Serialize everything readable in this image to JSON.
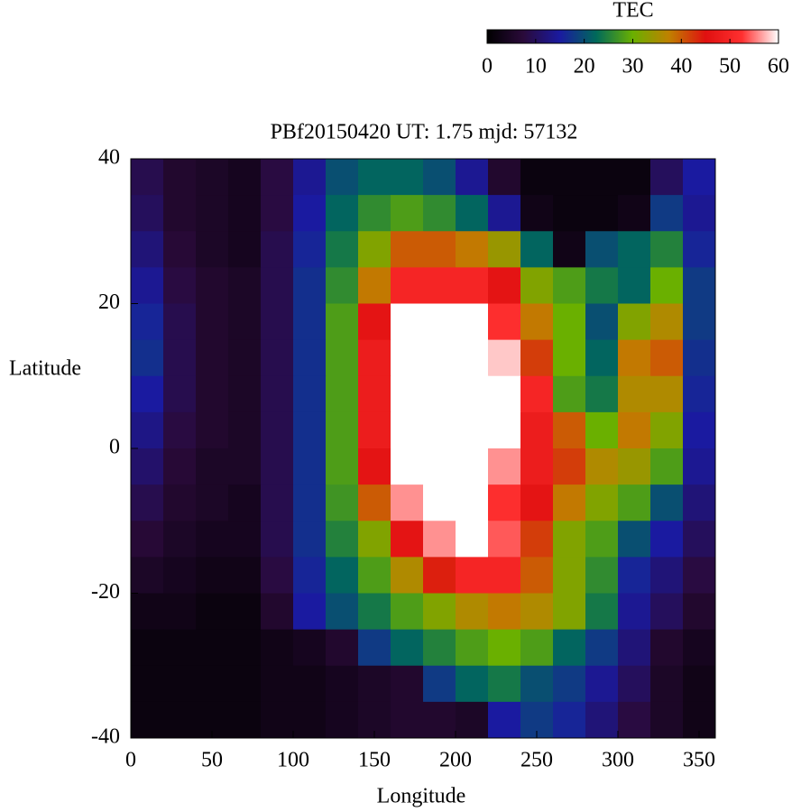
{
  "chart_data": {
    "type": "heatmap",
    "title": "PBf20150420  UT: 1.75  mjd: 57132",
    "xlabel": "Longitude",
    "ylabel": "Latitude",
    "colorbar_label": "TEC",
    "x": [
      10,
      30,
      50,
      70,
      90,
      110,
      130,
      150,
      170,
      190,
      210,
      230,
      250,
      270,
      290,
      310,
      330,
      350
    ],
    "y": [
      37.5,
      32.5,
      27.5,
      22.5,
      17.5,
      12.5,
      7.5,
      2.5,
      -2.5,
      -7.5,
      -12.5,
      -17.5,
      -22.5,
      -27.5,
      -32.5,
      -37.5
    ],
    "values": [
      [
        9,
        6,
        5,
        4,
        8,
        14,
        20,
        22,
        22,
        20,
        14,
        6,
        2,
        2,
        2,
        2,
        10,
        15
      ],
      [
        10,
        6,
        5,
        4,
        8,
        15,
        22,
        26,
        28,
        26,
        22,
        14,
        3,
        2,
        2,
        3,
        18,
        14
      ],
      [
        12,
        7,
        5,
        4,
        9,
        16,
        24,
        32,
        40,
        40,
        38,
        34,
        22,
        3,
        20,
        22,
        25,
        16
      ],
      [
        14,
        8,
        6,
        5,
        9,
        17,
        26,
        38,
        50,
        50,
        50,
        46,
        32,
        28,
        24,
        22,
        30,
        18
      ],
      [
        16,
        9,
        6,
        5,
        9,
        17,
        28,
        46,
        60,
        60,
        60,
        52,
        38,
        30,
        20,
        32,
        36,
        18
      ],
      [
        17,
        9,
        6,
        5,
        9,
        17,
        28,
        48,
        60,
        60,
        60,
        58,
        42,
        30,
        22,
        38,
        40,
        17
      ],
      [
        15,
        9,
        6,
        5,
        9,
        17,
        28,
        48,
        60,
        60,
        60,
        60,
        50,
        28,
        24,
        36,
        36,
        16
      ],
      [
        13,
        8,
        6,
        5,
        9,
        17,
        28,
        48,
        60,
        60,
        60,
        60,
        48,
        40,
        30,
        38,
        32,
        15
      ],
      [
        11,
        7,
        5,
        5,
        9,
        17,
        28,
        46,
        60,
        60,
        60,
        56,
        48,
        42,
        36,
        34,
        28,
        14
      ],
      [
        9,
        6,
        5,
        4,
        9,
        17,
        27,
        40,
        56,
        60,
        60,
        52,
        46,
        38,
        32,
        28,
        20,
        12
      ],
      [
        7,
        5,
        4,
        4,
        9,
        17,
        25,
        32,
        46,
        56,
        60,
        54,
        42,
        32,
        28,
        20,
        15,
        10
      ],
      [
        5,
        4,
        3,
        3,
        8,
        16,
        22,
        28,
        36,
        44,
        50,
        50,
        40,
        32,
        26,
        16,
        12,
        8
      ],
      [
        3,
        3,
        2,
        2,
        6,
        15,
        20,
        24,
        28,
        32,
        36,
        38,
        36,
        32,
        24,
        14,
        10,
        6
      ],
      [
        2,
        2,
        2,
        2,
        3,
        4,
        6,
        18,
        22,
        25,
        28,
        30,
        28,
        22,
        18,
        12,
        6,
        4
      ],
      [
        2,
        2,
        2,
        2,
        3,
        3,
        4,
        5,
        6,
        18,
        22,
        24,
        20,
        18,
        14,
        10,
        5,
        3
      ],
      [
        2,
        2,
        2,
        2,
        3,
        3,
        4,
        5,
        6,
        6,
        5,
        15,
        18,
        16,
        12,
        8,
        5,
        3
      ]
    ],
    "xlim": [
      0,
      360
    ],
    "ylim": [
      -40,
      40
    ],
    "xticks": [
      0,
      50,
      100,
      150,
      200,
      250,
      300,
      350
    ],
    "yticks": [
      -40,
      -20,
      0,
      20,
      40
    ],
    "clim": [
      0,
      60
    ],
    "cticks": [
      0,
      10,
      20,
      30,
      40,
      50,
      60
    ],
    "colormap": [
      "#000000",
      "#2a0a3a",
      "#1a1aa0",
      "#006a5a",
      "#6ab000",
      "#c08000",
      "#e01010",
      "#ff3030",
      "#ffffff"
    ]
  }
}
